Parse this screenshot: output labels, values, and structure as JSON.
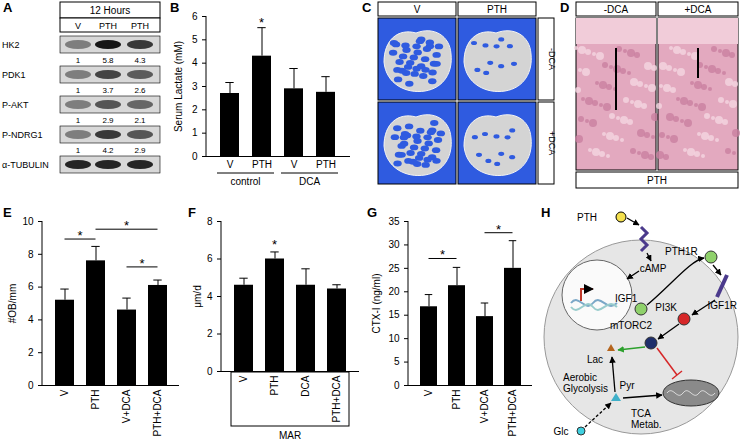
{
  "chart_data": [
    {
      "panel": "B",
      "type": "bar",
      "categories": [
        "V",
        "PTH",
        "V",
        "PTH"
      ],
      "values": [
        2.7,
        4.3,
        2.9,
        2.75
      ],
      "errors": [
        0.45,
        1.2,
        0.85,
        0.65
      ],
      "color": "#000000",
      "ylabel": "Serum Lactate (mM)",
      "ylim": [
        0,
        6
      ],
      "yticks": [
        0,
        1,
        2,
        3,
        4,
        5,
        6
      ],
      "groups": [
        {
          "label": "control",
          "from": 0,
          "to": 1
        },
        {
          "label": "DCA",
          "from": 2,
          "to": 3
        }
      ],
      "significance": [
        {
          "from": 1,
          "to": 1,
          "y": 5.75,
          "label": "*"
        }
      ]
    },
    {
      "panel": "E",
      "type": "bar",
      "categories": [
        "V",
        "PTH",
        "V+DCA",
        "PTH+DCA"
      ],
      "values": [
        5.2,
        7.6,
        4.6,
        6.1
      ],
      "errors": [
        0.65,
        0.85,
        0.7,
        0.3
      ],
      "color": "#000000",
      "ylabel": "#OB/mm",
      "ylim": [
        0,
        10
      ],
      "yticks": [
        0,
        2,
        4,
        6,
        8,
        10
      ],
      "significance": [
        {
          "from": 0,
          "to": 1,
          "y": 8.9,
          "label": "*"
        },
        {
          "from": 1,
          "to": 3,
          "y": 9.5,
          "label": "*"
        },
        {
          "from": 2,
          "to": 3,
          "y": 7.2,
          "label": "*"
        }
      ]
    },
    {
      "panel": "F",
      "type": "bar",
      "categories": [
        "V",
        "PTH",
        "DCA",
        "PTH+DCA"
      ],
      "values": [
        4.6,
        6.0,
        4.6,
        4.4
      ],
      "errors": [
        0.35,
        0.35,
        0.85,
        0.2
      ],
      "color": "#000000",
      "ylabel": "μm/d",
      "ylim": [
        0,
        8
      ],
      "yticks": [
        0,
        2,
        4,
        6,
        8
      ],
      "groups": [
        {
          "label": "MAR",
          "from": 0,
          "to": 3
        }
      ],
      "significance": [
        {
          "from": 1,
          "to": 1,
          "y": 6.8,
          "label": "*"
        }
      ]
    },
    {
      "panel": "G",
      "type": "bar",
      "categories": [
        "V",
        "PTH",
        "V+DCA",
        "PTH+DCA"
      ],
      "values": [
        16.8,
        21.3,
        14.7,
        25.0
      ],
      "errors": [
        2.5,
        3.8,
        2.8,
        5.8
      ],
      "color": "#000000",
      "ylabel": "CTX-I (ng/ml)",
      "ylim": [
        0,
        35
      ],
      "yticks": [
        0,
        5,
        10,
        15,
        20,
        25,
        30,
        35
      ],
      "significance": [
        {
          "from": 0,
          "to": 1,
          "y": 27,
          "label": "*"
        },
        {
          "from": 2,
          "to": 3,
          "y": 32.5,
          "label": "*"
        }
      ]
    }
  ],
  "panels": {
    "A": {
      "header": "12 Hours",
      "lanes": [
        "V",
        "PTH",
        "PTH"
      ],
      "rows": [
        {
          "label": "HK2",
          "values": [
            1,
            5.8,
            4.3
          ]
        },
        {
          "label": "PDK1",
          "values": [
            1,
            3.7,
            2.6
          ]
        },
        {
          "label": "P-AKT",
          "values": [
            1,
            2.9,
            2.1
          ]
        },
        {
          "label": "P-NDRG1",
          "values": [
            1,
            4.2,
            2.9
          ]
        },
        {
          "label": "α-TUBULIN"
        }
      ]
    },
    "C": {
      "columns": [
        "V",
        "PTH"
      ],
      "rows": [
        "-DCA",
        "+DCA"
      ]
    },
    "D": {
      "columns": [
        "-DCA",
        "+DCA"
      ],
      "footer": "PTH"
    },
    "H": {
      "nodes": [
        "PTH",
        "PTH1R",
        "cAMP",
        "IGF1",
        "IGF1R",
        "PI3K",
        "mTORC2",
        "Lac",
        "Aerobic\nGlycolysis",
        "Pyr",
        "TCA\nMetab.",
        "Glc"
      ]
    }
  }
}
